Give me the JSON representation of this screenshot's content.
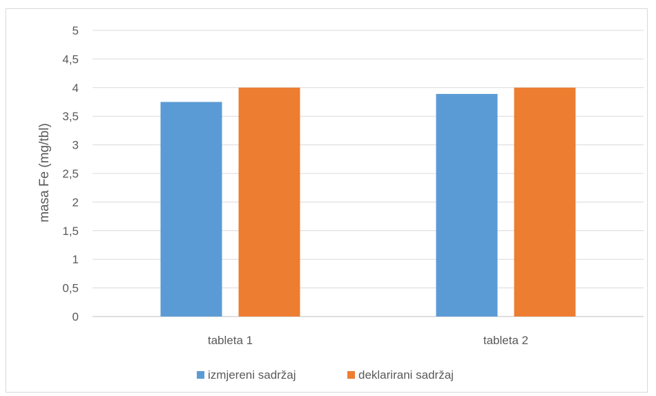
{
  "chart_data": {
    "type": "bar",
    "title": "",
    "xlabel": "",
    "ylabel": "masa Fe (mg/tbl)",
    "ylim": [
      0,
      5
    ],
    "yticks": [
      "0",
      "0,5",
      "1",
      "1,5",
      "2",
      "2,5",
      "3",
      "3,5",
      "4",
      "4,5",
      "5"
    ],
    "categories": [
      "tableta 1",
      "tableta 2"
    ],
    "series": [
      {
        "name": "izmjereni sadržaj",
        "values": [
          3.75,
          3.89
        ],
        "color": "#5b9bd5"
      },
      {
        "name": "deklarirani sadržaj",
        "values": [
          4.0,
          4.0
        ],
        "color": "#ed7d31"
      }
    ],
    "grid": true,
    "legend_position": "bottom"
  }
}
